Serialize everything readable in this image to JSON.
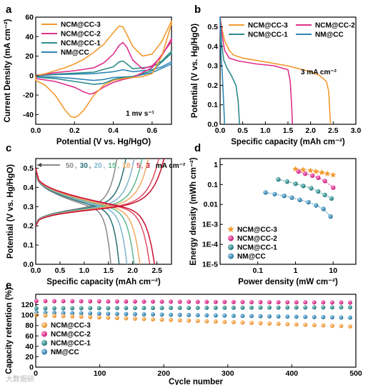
{
  "colors": {
    "NCM@CC-3": "#f39a2e",
    "NCM@CC-2": "#e0308a",
    "NCM@CC-1": "#2e8c8c",
    "NM@CC": "#2f86b4"
  },
  "watermark": "大数据研",
  "chart_data": [
    {
      "panel": "a",
      "type": "line",
      "xlabel": "Potential (V vs. Hg/HgO)",
      "ylabel": "Current Density (mA cm⁻²)",
      "xlim": [
        0,
        0.7
      ],
      "ylim": [
        -50,
        60
      ],
      "xticks": [
        "0.0",
        "0.2",
        "0.4",
        "0.6"
      ],
      "xtick_values": [
        0,
        0.2,
        0.4,
        0.6
      ],
      "yticks": [
        "-40",
        "-20",
        "0",
        "20",
        "40",
        "60"
      ],
      "ytick_values": [
        -40,
        -20,
        0,
        20,
        40,
        60
      ],
      "annotation": "1 mv s⁻¹",
      "legend_position": "top-left",
      "series": [
        {
          "name": "NCM@CC-3",
          "x": [
            0,
            0.05,
            0.1,
            0.15,
            0.2,
            0.25,
            0.3,
            0.35,
            0.4,
            0.43,
            0.45,
            0.47,
            0.5,
            0.55,
            0.6,
            0.65,
            0.7,
            0.7,
            0.65,
            0.6,
            0.55,
            0.5,
            0.45,
            0.4,
            0.35,
            0.3,
            0.25,
            0.22,
            0.2,
            0.18,
            0.15,
            0.1,
            0.05,
            0
          ],
          "y": [
            0,
            2,
            5,
            8,
            12,
            17,
            24,
            32,
            44,
            51,
            50,
            42,
            30,
            20,
            22,
            35,
            56,
            53,
            20,
            2,
            -1,
            -2,
            -3,
            -5,
            -10,
            -20,
            -35,
            -41,
            -43,
            -42,
            -35,
            -20,
            -10,
            -5
          ]
        },
        {
          "name": "NCM@CC-2",
          "x": [
            0,
            0.1,
            0.2,
            0.3,
            0.35,
            0.4,
            0.43,
            0.45,
            0.47,
            0.5,
            0.55,
            0.6,
            0.65,
            0.7,
            0.7,
            0.6,
            0.5,
            0.45,
            0.4,
            0.35,
            0.3,
            0.28,
            0.25,
            0.2,
            0.1,
            0
          ],
          "y": [
            0,
            3,
            5,
            8,
            13,
            22,
            31,
            34,
            29,
            16,
            7,
            10,
            20,
            38,
            35,
            8,
            -2,
            -4,
            -7,
            -12,
            -18,
            -19,
            -17,
            -12,
            -6,
            -3
          ]
        },
        {
          "name": "NCM@CC-1",
          "x": [
            0,
            0.1,
            0.2,
            0.3,
            0.4,
            0.43,
            0.45,
            0.47,
            0.5,
            0.6,
            0.65,
            0.7,
            0.7,
            0.6,
            0.5,
            0.45,
            0.4,
            0.35,
            0.3,
            0.2,
            0.1,
            0
          ],
          "y": [
            0,
            1.5,
            2.5,
            3.5,
            9,
            14,
            15,
            12,
            7,
            9,
            15,
            25,
            23,
            5,
            -1,
            -2,
            -4,
            -8,
            -9,
            -6,
            -3,
            -1.5
          ]
        },
        {
          "name": "NM@CC",
          "x": [
            0,
            0.1,
            0.2,
            0.3,
            0.4,
            0.45,
            0.5,
            0.6,
            0.65,
            0.7,
            0.7,
            0.6,
            0.5,
            0.4,
            0.35,
            0.3,
            0.2,
            0.1,
            0
          ],
          "y": [
            0,
            1,
            1.5,
            2,
            4,
            6,
            4,
            6,
            9,
            14,
            12,
            3,
            -1,
            -2,
            -4,
            -5,
            -3,
            -1.5,
            -0.8
          ]
        }
      ]
    },
    {
      "panel": "b",
      "type": "line",
      "xlabel": "Specific capacity (mAh cm⁻²)",
      "ylabel": "Potential (V vs. Hg/HgO)",
      "xlim": [
        0,
        3.0
      ],
      "ylim": [
        0,
        0.55
      ],
      "xticks": [
        "0.0",
        "0.5",
        "1.0",
        "1.5",
        "2.0",
        "2.5",
        "3.0"
      ],
      "xtick_values": [
        0,
        0.5,
        1.0,
        1.5,
        2.0,
        2.5,
        3.0
      ],
      "yticks": [
        "0.0",
        "0.1",
        "0.2",
        "0.3",
        "0.4",
        "0.5"
      ],
      "ytick_values": [
        0,
        0.1,
        0.2,
        0.3,
        0.4,
        0.5
      ],
      "annotation": "3 mA cm⁻²",
      "legend_position": "top",
      "series": [
        {
          "name": "NCM@CC-3",
          "x": [
            0,
            0.05,
            0.1,
            0.2,
            0.3,
            0.5,
            1.0,
            1.5,
            2.0,
            2.2,
            2.35,
            2.4,
            2.42,
            2.44
          ],
          "y": [
            0.55,
            0.48,
            0.43,
            0.38,
            0.355,
            0.34,
            0.32,
            0.3,
            0.27,
            0.25,
            0.22,
            0.17,
            0.08,
            0
          ]
        },
        {
          "name": "NCM@CC-2",
          "x": [
            0,
            0.05,
            0.1,
            0.2,
            0.4,
            0.8,
            1.2,
            1.5,
            1.55,
            1.58,
            1.6
          ],
          "y": [
            0.55,
            0.45,
            0.38,
            0.34,
            0.325,
            0.31,
            0.3,
            0.28,
            0.22,
            0.1,
            0
          ]
        },
        {
          "name": "NCM@CC-1",
          "x": [
            0,
            0.03,
            0.08,
            0.15,
            0.25,
            0.35,
            0.4,
            0.43
          ],
          "y": [
            0.55,
            0.42,
            0.33,
            0.29,
            0.25,
            0.2,
            0.12,
            0
          ]
        },
        {
          "name": "NM@CC",
          "x": [
            0,
            0.02,
            0.05,
            0.08,
            0.1
          ],
          "y": [
            0.55,
            0.35,
            0.25,
            0.1,
            0
          ]
        }
      ]
    },
    {
      "panel": "c",
      "type": "line",
      "xlabel": "Specific capacity (mAh cm⁻²)",
      "ylabel": "Potential (V vs. Hg/HgO)",
      "xlim": [
        0,
        2.8
      ],
      "ylim": [
        0,
        0.55
      ],
      "xticks": [
        "0.0",
        "0.5",
        "1.0",
        "1.5",
        "2.0",
        "2.5"
      ],
      "xtick_values": [
        0,
        0.5,
        1.0,
        1.5,
        2.0,
        2.5
      ],
      "yticks": [
        "0.0",
        "0.1",
        "0.2",
        "0.3",
        "0.4",
        "0.5"
      ],
      "ytick_values": [
        0,
        0.1,
        0.2,
        0.3,
        0.4,
        0.5
      ],
      "legend_suffix": "mA cm⁻²",
      "series": [
        {
          "name": "50",
          "color": "#888888",
          "capacity": 1.55
        },
        {
          "name": "30",
          "color": "#2a6f73",
          "capacity": 1.72
        },
        {
          "name": "20",
          "color": "#7fb4d0",
          "capacity": 1.88
        },
        {
          "name": "15",
          "color": "#5fb88f",
          "capacity": 2.03
        },
        {
          "name": "10",
          "color": "#f0a860",
          "capacity": 2.15
        },
        {
          "name": "5",
          "color": "#e04e63",
          "capacity": 2.35
        },
        {
          "name": "3",
          "color": "#c8102e",
          "capacity": 2.45
        }
      ]
    },
    {
      "panel": "d",
      "type": "scatter",
      "xlabel": "Power density (mW cm⁻²)",
      "ylabel": "Energy density (mWh cm⁻²)",
      "xscale": "log",
      "yscale": "log",
      "xlim": [
        0.01,
        40
      ],
      "ylim": [
        1e-05,
        2
      ],
      "xticks": [
        "0.1",
        "1",
        "10"
      ],
      "xtick_values": [
        0.1,
        1,
        10
      ],
      "yticks": [
        "1E-5",
        "1E-4",
        "1E-3",
        "0.01",
        "0.1",
        "1"
      ],
      "ytick_values": [
        1e-05,
        0.0001,
        0.001,
        0.01,
        0.1,
        1
      ],
      "legend_position": "bottom-left",
      "series": [
        {
          "name": "NCM@CC-3",
          "marker": "star",
          "x": [
            1,
            1.6,
            2.5,
            3.5,
            5,
            7,
            10
          ],
          "y": [
            0.6,
            0.55,
            0.5,
            0.45,
            0.4,
            0.35,
            0.3
          ]
        },
        {
          "name": "NCM@CC-2",
          "marker": "circle",
          "x": [
            1.2,
            1.8,
            2.8,
            4,
            6,
            10
          ],
          "y": [
            0.45,
            0.35,
            0.28,
            0.22,
            0.15,
            0.07
          ]
        },
        {
          "name": "NCM@CC-1",
          "marker": "circle",
          "x": [
            0.35,
            0.6,
            1,
            1.6,
            2.6,
            4,
            6,
            9
          ],
          "y": [
            0.18,
            0.14,
            0.11,
            0.085,
            0.065,
            0.045,
            0.03,
            0.02
          ]
        },
        {
          "name": "NM@CC",
          "marker": "circle",
          "x": [
            0.16,
            0.28,
            0.5,
            0.8,
            1.3,
            2.2,
            3.5,
            5.5,
            8.5
          ],
          "y": [
            0.04,
            0.033,
            0.027,
            0.022,
            0.017,
            0.013,
            0.009,
            0.006,
            0.0025
          ]
        }
      ]
    },
    {
      "panel": "e",
      "type": "scatter",
      "xlabel": "Cycle number",
      "ylabel": "Capacity retention (%)",
      "xlim": [
        0,
        500
      ],
      "ylim": [
        0,
        140
      ],
      "xticks": [
        "0",
        "100",
        "200",
        "300",
        "400",
        "500"
      ],
      "xtick_values": [
        0,
        100,
        200,
        300,
        400,
        500
      ],
      "yticks": [
        "0",
        "20",
        "40",
        "60",
        "80",
        "100",
        "120"
      ],
      "ytick_values": [
        0,
        20,
        40,
        60,
        80,
        100,
        120
      ],
      "legend_position": "bottom-left",
      "series": [
        {
          "name": "NCM@CC-3",
          "start": 100,
          "end": 78
        },
        {
          "name": "NCM@CC-2",
          "start": 127,
          "end": 124
        },
        {
          "name": "NCM@CC-1",
          "start": 113,
          "end": 115
        },
        {
          "name": "NM@CC",
          "start": 105,
          "end": 95
        }
      ]
    }
  ]
}
